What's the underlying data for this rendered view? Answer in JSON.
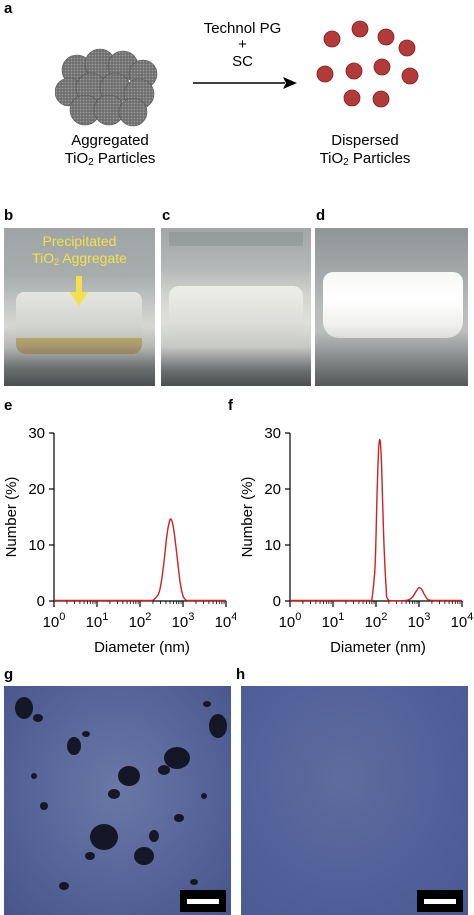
{
  "panels": {
    "a": {
      "label": "a",
      "reagent_line1": "Technol PG",
      "reagent_line2": "+",
      "reagent_line3": "SC",
      "left_caption_1": "Aggregated",
      "left_caption_2_main": "TiO",
      "left_caption_2_sub": "2",
      "left_caption_2_rest": " Particles",
      "right_caption_1": "Dispersed",
      "right_caption_2_main": "TiO",
      "right_caption_2_sub": "2",
      "right_caption_2_rest": " Particles"
    },
    "b": {
      "label": "b",
      "annotation_1": "Precipitated",
      "annotation_2_main": "TiO",
      "annotation_2_sub": "2",
      "annotation_2_rest": " Aggregate"
    },
    "c": {
      "label": "c"
    },
    "d": {
      "label": "d"
    },
    "e": {
      "label": "e"
    },
    "f": {
      "label": "f"
    },
    "g": {
      "label": "g"
    },
    "h": {
      "label": "h"
    }
  },
  "colors": {
    "particle_aggregate": "#7a7a7a",
    "particle_dispersed": "#b23a3a",
    "curve": "#cc2222",
    "annotation": "#f2e14a",
    "micrograph_bg": "#4f5d8e"
  },
  "chart_data": [
    {
      "panel": "e",
      "type": "line",
      "xscale": "log",
      "xlabel": "Diameter (nm)",
      "ylabel": "Number (%)",
      "xlim": [
        1,
        10000
      ],
      "ylim": [
        0,
        30
      ],
      "yticks": [
        0,
        10,
        20,
        30
      ],
      "xticks_base": "10",
      "xticks_exp": [
        "0",
        "1",
        "2",
        "3",
        "4"
      ],
      "series": [
        {
          "x": [
            200,
            280,
            350,
            420,
            480,
            530,
            600,
            700,
            850,
            1000,
            1200
          ],
          "y": [
            0,
            1.5,
            6,
            11.5,
            14,
            14.5,
            13,
            9,
            3.5,
            0.8,
            0
          ]
        }
      ]
    },
    {
      "panel": "f",
      "type": "line",
      "xscale": "log",
      "xlabel": "Diameter (nm)",
      "ylabel": "Number (%)",
      "xlim": [
        1,
        10000
      ],
      "ylim": [
        0,
        30
      ],
      "yticks": [
        0,
        10,
        20,
        30
      ],
      "xticks_base": "10",
      "xticks_exp": [
        "0",
        "1",
        "2",
        "3",
        "4"
      ],
      "series": [
        {
          "x": [
            80,
            95,
            105,
            115,
            125,
            135,
            150,
            170,
            200,
            500,
            700,
            850,
            1000,
            1150,
            1350,
            1600,
            2000
          ],
          "y": [
            0,
            6,
            18,
            27,
            28.5,
            24,
            12,
            3,
            0,
            0,
            0.6,
            1.6,
            2.3,
            2.0,
            1.0,
            0.2,
            0
          ]
        }
      ]
    }
  ]
}
